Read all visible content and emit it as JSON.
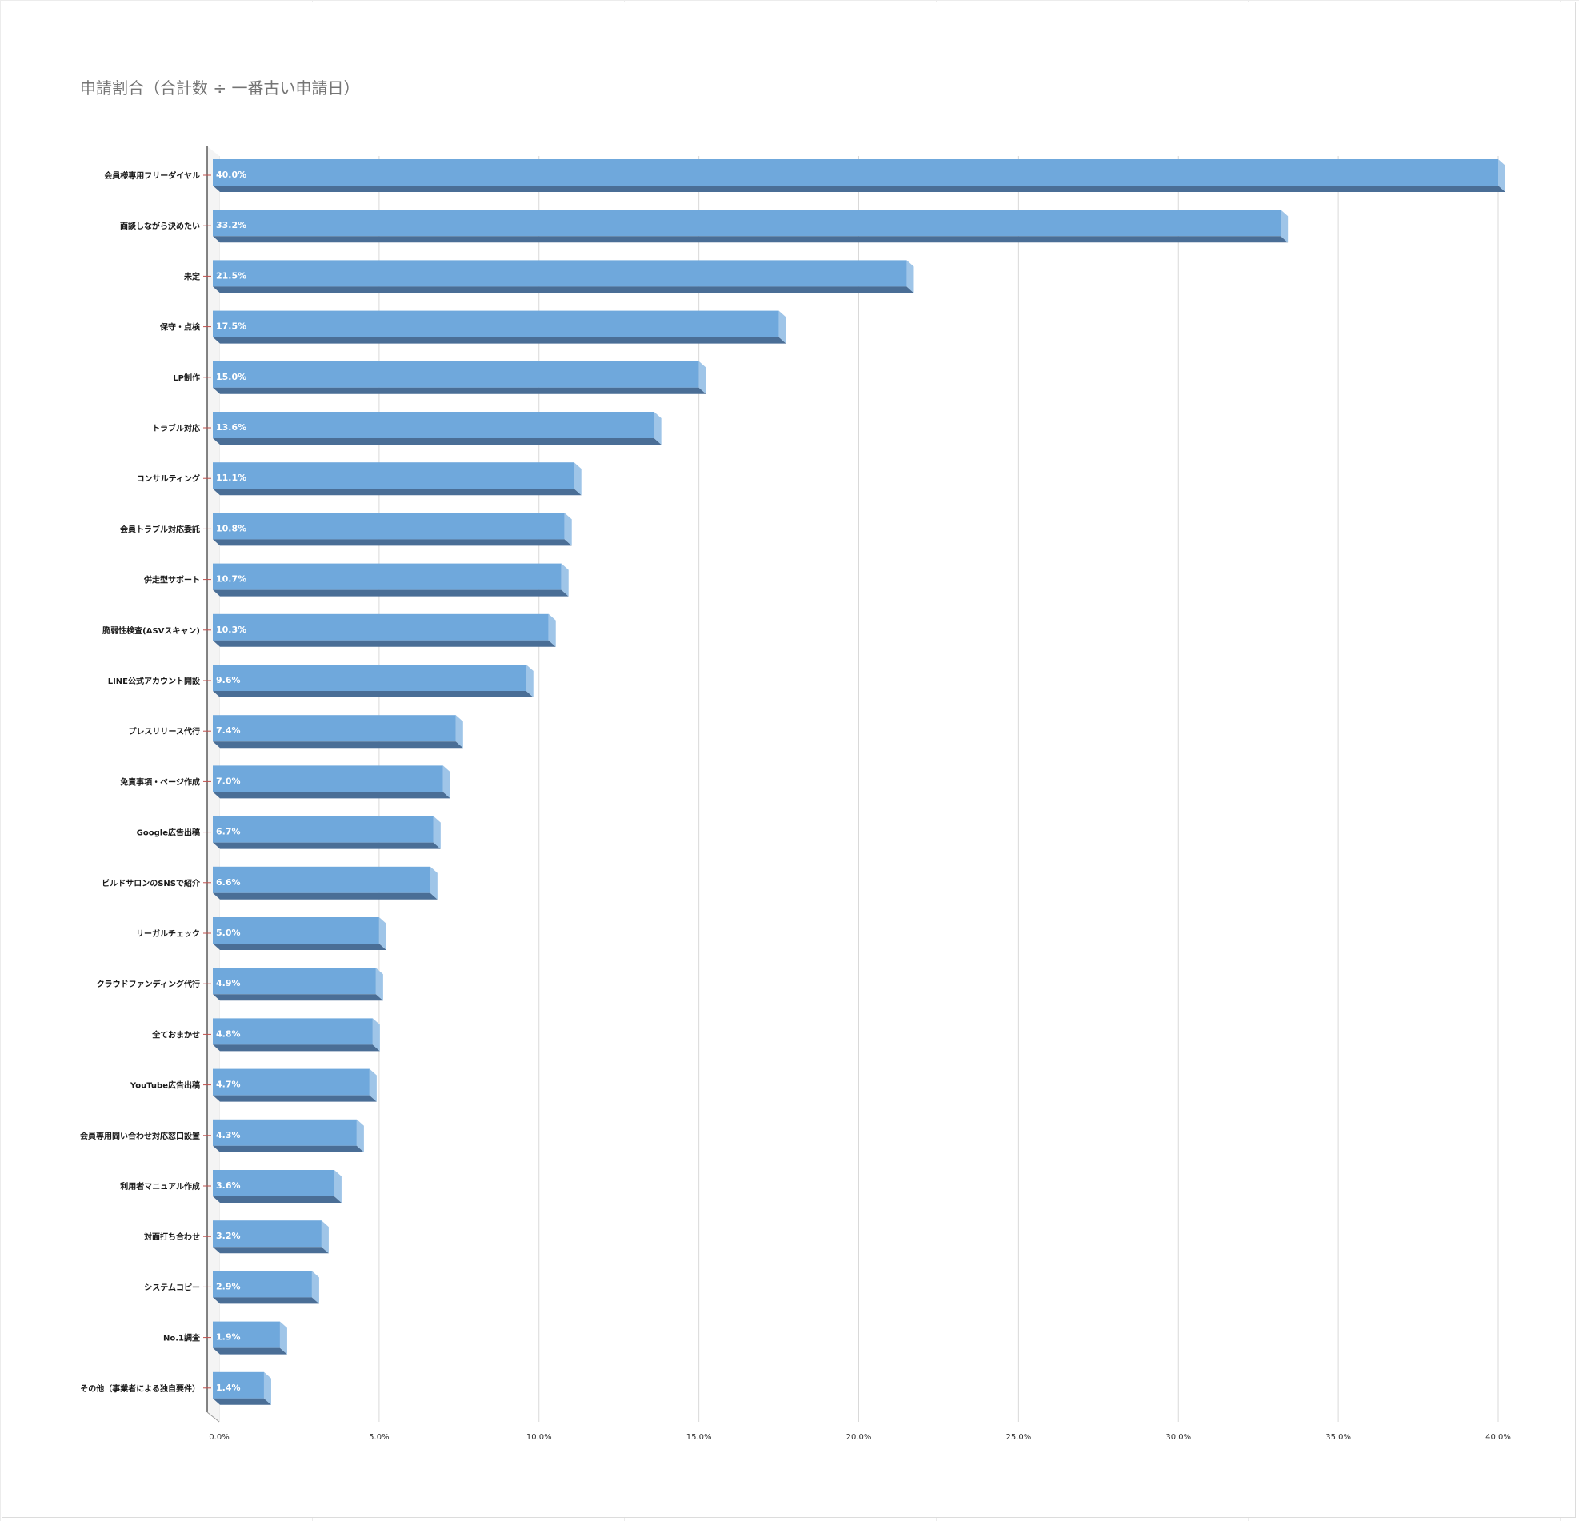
{
  "chart_data": {
    "type": "bar",
    "orientation": "horizontal",
    "style": "3d",
    "title": "申請割合（合計数 ÷ 一番古い申請日）",
    "xlabel": "",
    "ylabel": "",
    "xlim": [
      0,
      40
    ],
    "grid": true,
    "legend": "none",
    "colors": {
      "bar_front": "#6fa8dc",
      "bar_bottom": "#4a6e96",
      "bar_side": "#9fc5e8",
      "grid": "#d9d9d9",
      "axis": "#333333",
      "tick_mark": "#c0504d"
    },
    "x_ticks": [
      "0.0%",
      "5.0%",
      "10.0%",
      "15.0%",
      "20.0%",
      "25.0%",
      "30.0%",
      "35.0%",
      "40.0%"
    ],
    "x_tick_values": [
      0,
      5,
      10,
      15,
      20,
      25,
      30,
      35,
      40
    ],
    "categories": [
      "会員様専用フリーダイヤル",
      "面談しながら決めたい",
      "未定",
      "保守・点検",
      "LP制作",
      "トラブル対応",
      "コンサルティング",
      "会員トラブル対応委託",
      "併走型サポート",
      "脆弱性検査(ASVスキャン)",
      "LINE公式アカウント開設",
      "プレスリリース代行",
      "免責事項・ページ作成",
      "Google広告出稿",
      "ビルドサロンのSNSで紹介",
      "リーガルチェック",
      "クラウドファンディング代行",
      "全ておまかせ",
      "YouTube広告出稿",
      "会員専用問い合わせ対応窓口設置",
      "利用者マニュアル作成",
      "対面打ち合わせ",
      "システムコピー",
      "No.1調査",
      "その他（事業者による独自要件）"
    ],
    "values": [
      40.0,
      33.2,
      21.5,
      17.5,
      15.0,
      13.6,
      11.1,
      10.8,
      10.7,
      10.3,
      9.6,
      7.4,
      7.0,
      6.7,
      6.6,
      5.0,
      4.9,
      4.8,
      4.7,
      4.3,
      3.6,
      3.2,
      2.9,
      1.9,
      1.4
    ],
    "data_labels": [
      "40.0%",
      "33.2%",
      "21.5%",
      "17.5%",
      "15.0%",
      "13.6%",
      "11.1%",
      "10.8%",
      "10.7%",
      "10.3%",
      "9.6%",
      "7.4%",
      "7.0%",
      "6.7%",
      "6.6%",
      "5.0%",
      "4.9%",
      "4.8%",
      "4.7%",
      "4.3%",
      "3.6%",
      "3.2%",
      "2.9%",
      "1.9%",
      "1.4%"
    ]
  }
}
